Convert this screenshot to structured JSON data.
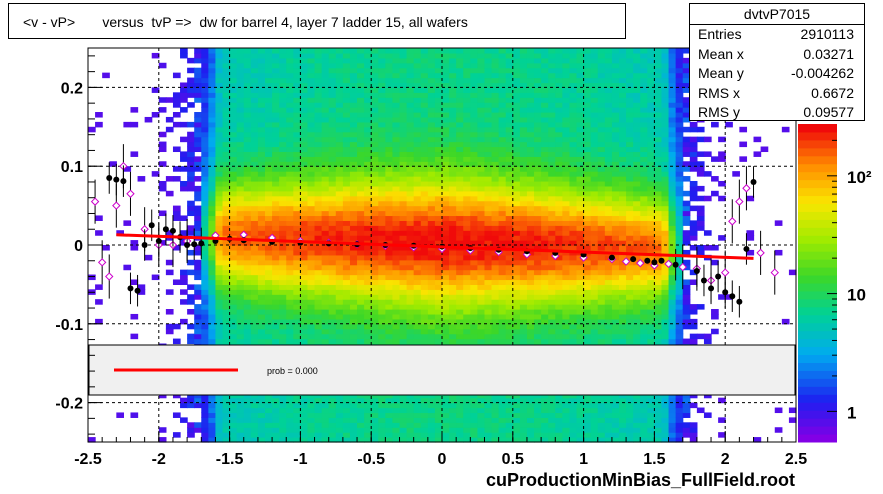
{
  "title": "<v - vP>       versus  tvP =>  dw for barrel 4, layer 7 ladder 15, all wafers",
  "footer": "cuProductionMinBias_FullField.root",
  "stats": {
    "name": "dvtvP7015",
    "rows": [
      {
        "label": "Entries",
        "value": "2910113"
      },
      {
        "label": "Mean x",
        "value": "0.03271"
      },
      {
        "label": "Mean y",
        "value": "-0.004262"
      },
      {
        "label": "RMS x",
        "value": "0.6672"
      },
      {
        "label": "RMS y",
        "value": "0.09577"
      }
    ]
  },
  "legend": {
    "label": "prob = 0.000"
  },
  "colors": {
    "fit": "#ff0000",
    "profile": "#000000",
    "open_markers": "#cc00cc",
    "legend_bg": "#f0f0f0"
  },
  "chart_data": {
    "type": "heatmap",
    "xlim": [
      -2.5,
      2.5
    ],
    "ylim": [
      -0.25,
      0.25
    ],
    "x_ticks": [
      "-2.5",
      "-2",
      "-1.5",
      "-1",
      "-0.5",
      "0",
      "0.5",
      "1",
      "1.5",
      "2",
      "2.5"
    ],
    "x_tick_values": [
      -2.5,
      -2,
      -1.5,
      -1,
      -0.5,
      0,
      0.5,
      1,
      1.5,
      2,
      2.5
    ],
    "y_ticks": [
      "-0.2",
      "-0.1",
      "0",
      "0.1",
      "0.2"
    ],
    "y_tick_values": [
      -0.2,
      -0.1,
      0,
      0.1,
      0.2
    ],
    "z_scale": "log",
    "z_ticks": [
      "1",
      "10",
      "10²"
    ],
    "z_tick_values": [
      1,
      10,
      100
    ],
    "grid": true,
    "profile_filled": {
      "x": [
        -2.35,
        -2.3,
        -2.25,
        -2.2,
        -2.15,
        -2.1,
        -2.05,
        -2.0,
        -1.95,
        -1.9,
        -1.85,
        -1.8,
        -1.75,
        -1.7,
        -1.6,
        -1.5,
        -1.4,
        -1.2,
        -1.0,
        -0.8,
        -0.6,
        -0.4,
        -0.2,
        0.0,
        0.2,
        0.4,
        0.6,
        0.8,
        1.0,
        1.2,
        1.35,
        1.45,
        1.5,
        1.55,
        1.65,
        1.8,
        1.85,
        1.9,
        1.95,
        2.0,
        2.05,
        2.1,
        2.15,
        2.2
      ],
      "y": [
        0.085,
        0.083,
        0.081,
        -0.055,
        -0.058,
        0.0,
        0.025,
        0.005,
        0.02,
        0.018,
        0.01,
        0.0,
        0.001,
        0.002,
        0.005,
        0.008,
        0.006,
        0.004,
        0.003,
        0.002,
        0.001,
        0.0,
        -0.001,
        -0.002,
        -0.004,
        -0.006,
        -0.008,
        -0.01,
        -0.012,
        -0.016,
        -0.018,
        -0.02,
        -0.022,
        -0.02,
        -0.025,
        -0.033,
        -0.045,
        -0.055,
        -0.04,
        -0.06,
        -0.065,
        -0.072,
        -0.005,
        0.08
      ]
    },
    "profile_open": {
      "x": [
        -2.45,
        -2.4,
        -2.35,
        -2.3,
        -2.25,
        -2.2,
        -2.1,
        -2.0,
        -1.9,
        -1.8,
        -1.6,
        -1.4,
        -1.2,
        -1.0,
        -0.8,
        -0.6,
        -0.4,
        -0.2,
        0.0,
        0.2,
        0.4,
        0.6,
        0.8,
        1.0,
        1.2,
        1.3,
        1.4,
        1.5,
        1.6,
        1.7,
        1.8,
        1.9,
        2.0,
        2.05,
        2.1,
        2.15,
        2.25,
        2.35
      ],
      "y": [
        0.055,
        -0.022,
        -0.04,
        0.05,
        0.1,
        0.065,
        0.02,
        0.0,
        0.0,
        0.005,
        0.012,
        0.013,
        0.009,
        0.005,
        0.003,
        0.001,
        -0.001,
        -0.003,
        -0.005,
        -0.007,
        -0.009,
        -0.012,
        -0.014,
        -0.016,
        -0.018,
        -0.021,
        -0.023,
        -0.026,
        -0.024,
        -0.028,
        -0.03,
        -0.045,
        -0.035,
        0.03,
        0.055,
        0.072,
        -0.01,
        -0.035
      ]
    },
    "fit_line": {
      "x": [
        -2.3,
        2.2
      ],
      "y": [
        0.013,
        -0.017
      ]
    }
  }
}
